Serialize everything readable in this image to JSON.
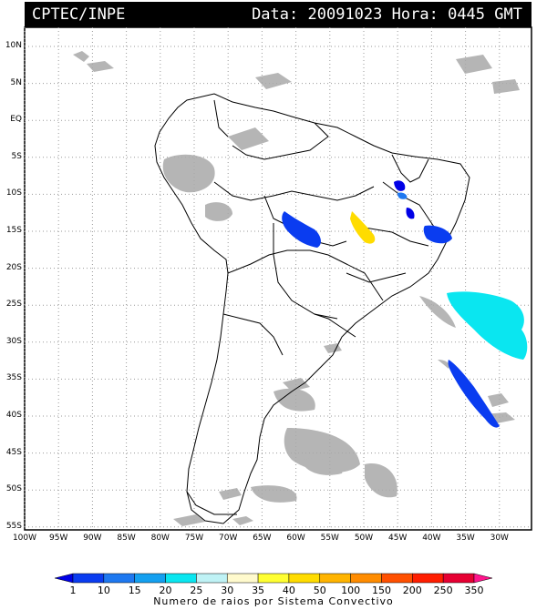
{
  "header": {
    "source": "CPTEC/INPE",
    "date_label": "Data:",
    "date": "20091023",
    "hour_label": "Hora:",
    "hour": "0445",
    "zone": "GMT"
  },
  "latitude_labels": [
    "10N",
    "5N",
    "EQ",
    "5S",
    "10S",
    "15S",
    "20S",
    "25S",
    "30S",
    "35S",
    "40S",
    "45S",
    "50S",
    "55S"
  ],
  "longitude_labels": [
    "100W",
    "95W",
    "90W",
    "85W",
    "80W",
    "75W",
    "70W",
    "65W",
    "60W",
    "55W",
    "50W",
    "45W",
    "40W",
    "35W",
    "30W"
  ],
  "legend": {
    "title": "Numero de raios por Sistema Convectivo",
    "values": [
      "1",
      "10",
      "15",
      "20",
      "25",
      "30",
      "35",
      "40",
      "50",
      "100",
      "150",
      "200",
      "250",
      "350"
    ],
    "colors": [
      "#0000e6",
      "#0a3cf0",
      "#1e78f0",
      "#14a0f0",
      "#0ae6f0",
      "#bff2f5",
      "#fffacd",
      "#ffff32",
      "#ffdc00",
      "#ffb400",
      "#ff8c00",
      "#ff5000",
      "#ff1e00",
      "#e60032",
      "#ff148c"
    ]
  },
  "colors": {
    "cloud": "#a9a9a9",
    "land_outline": "#000000",
    "grid": "#9a9a9a"
  }
}
